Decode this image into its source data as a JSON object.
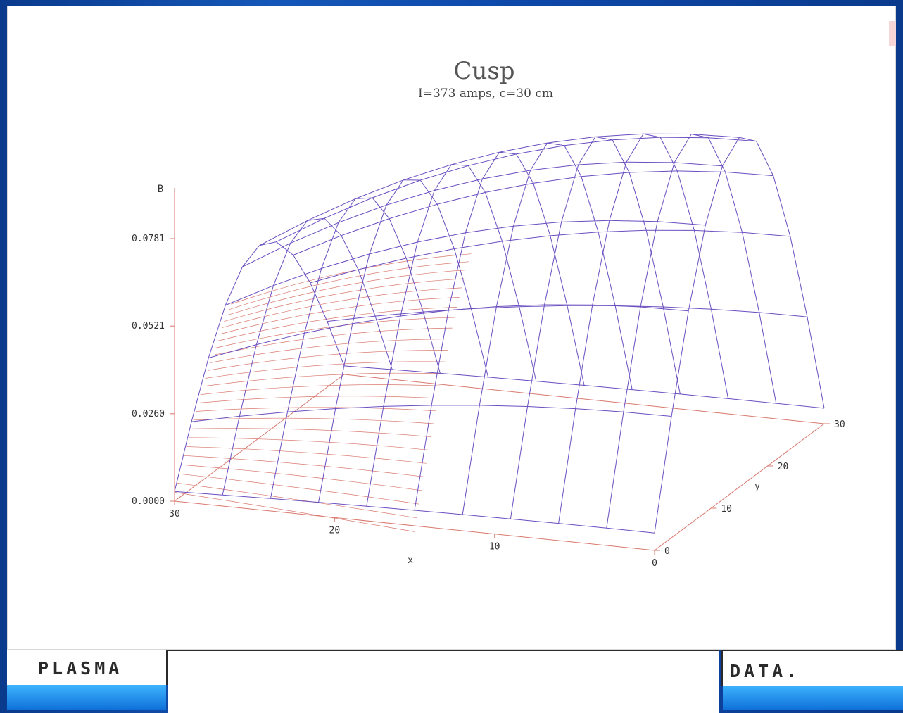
{
  "bottom_bar": {
    "left_label": "PLASMA",
    "right_label": "DATA."
  },
  "chart_data": {
    "type": "surface3d",
    "title": "Cusp",
    "subtitle": "I=373 amps, c=30 cm",
    "zlabel": "B",
    "xlabel": "x",
    "ylabel": "y",
    "z_ticks": [
      "0.0000",
      "0.0260",
      "0.0521",
      "0.0781"
    ],
    "x_ticks": [
      "30",
      "20",
      "10",
      "0"
    ],
    "y_ticks": [
      "0",
      "10",
      "20",
      "30"
    ],
    "xlim": [
      0,
      30
    ],
    "ylim": [
      0,
      30
    ],
    "zlim": [
      0,
      0.104
    ],
    "surface": {
      "description_formula": "B(x,y) approx 0.104 * sin(pi*y/30) * (1 - 0.45*(x/30)^2) ... corner (x=30,y=0) ~0.052",
      "grid_x": [
        0,
        3,
        6,
        9,
        12,
        15,
        18,
        21,
        24,
        27,
        30
      ],
      "grid_y": [
        0,
        3,
        6,
        9,
        12,
        15,
        18,
        21,
        24,
        27,
        30
      ]
    },
    "colors": {
      "front_mesh": "#6a4ec0",
      "back_mesh": "#d9786e",
      "axes": "#d9786e"
    }
  }
}
